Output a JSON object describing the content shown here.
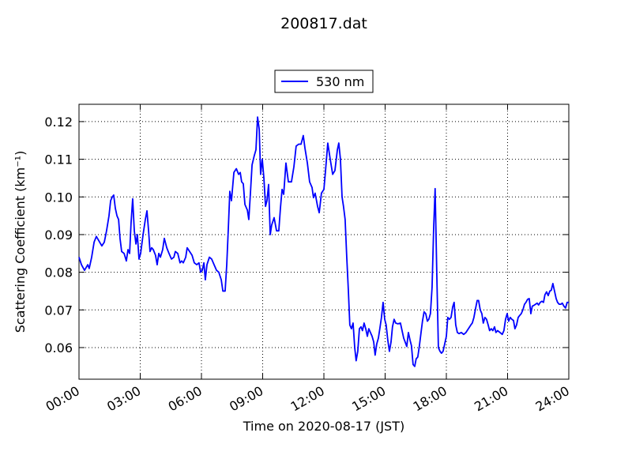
{
  "chart_data": {
    "type": "line",
    "title": "200817.dat",
    "xlabel": "Time on 2020-08-17 (JST)",
    "ylabel": "Scattering Coefficient (km⁻¹)",
    "xlim": [
      0,
      24
    ],
    "ylim": [
      0.0516,
      0.1246
    ],
    "xticks": [
      {
        "value": 0,
        "label": "00:00"
      },
      {
        "value": 3,
        "label": "03:00"
      },
      {
        "value": 6,
        "label": "06:00"
      },
      {
        "value": 9,
        "label": "09:00"
      },
      {
        "value": 12,
        "label": "12:00"
      },
      {
        "value": 15,
        "label": "15:00"
      },
      {
        "value": 18,
        "label": "18:00"
      },
      {
        "value": 21,
        "label": "21:00"
      },
      {
        "value": 24,
        "label": "24:00"
      }
    ],
    "yticks": [
      0.06,
      0.07,
      0.08,
      0.09,
      {
        "value": 0.1,
        "label": "0.10"
      },
      0.11,
      0.12
    ],
    "grid": true,
    "legend": "top",
    "x": [
      0,
      0.12,
      0.27,
      0.43,
      0.5,
      0.62,
      0.74,
      0.85,
      1.01,
      1.12,
      1.24,
      1.35,
      1.47,
      1.55,
      1.63,
      1.7,
      1.78,
      1.86,
      1.94,
      2.01,
      2.09,
      2.21,
      2.32,
      2.4,
      2.48,
      2.55,
      2.63,
      2.71,
      2.79,
      2.86,
      2.94,
      3.02,
      3.14,
      3.25,
      3.33,
      3.41,
      3.48,
      3.56,
      3.64,
      3.75,
      3.83,
      3.91,
      3.99,
      4.1,
      4.18,
      4.3,
      4.41,
      4.53,
      4.65,
      4.72,
      4.84,
      4.95,
      5.03,
      5.11,
      5.23,
      5.3,
      5.42,
      5.54,
      5.65,
      5.77,
      5.88,
      5.96,
      6.04,
      6.12,
      6.19,
      6.27,
      6.39,
      6.5,
      6.62,
      6.74,
      6.85,
      6.97,
      7.05,
      7.16,
      7.24,
      7.32,
      7.39,
      7.47,
      7.59,
      7.71,
      7.82,
      7.9,
      7.97,
      8.05,
      8.13,
      8.25,
      8.32,
      8.4,
      8.48,
      8.59,
      8.67,
      8.75,
      8.83,
      8.9,
      8.98,
      9.06,
      9.14,
      9.21,
      9.29,
      9.37,
      9.44,
      9.56,
      9.68,
      9.79,
      9.87,
      9.95,
      10.03,
      10.14,
      10.26,
      10.41,
      10.53,
      10.64,
      10.76,
      10.88,
      10.99,
      11.07,
      11.19,
      11.3,
      11.42,
      11.49,
      11.57,
      11.69,
      11.77,
      11.88,
      12.0,
      12.08,
      12.19,
      12.31,
      12.43,
      12.54,
      12.66,
      12.73,
      12.81,
      12.89,
      12.96,
      13.04,
      13.12,
      13.2,
      13.27,
      13.35,
      13.43,
      13.51,
      13.58,
      13.66,
      13.74,
      13.82,
      13.89,
      13.97,
      14.05,
      14.13,
      14.2,
      14.28,
      14.36,
      14.44,
      14.51,
      14.59,
      14.67,
      14.74,
      14.82,
      14.9,
      14.98,
      15.05,
      15.13,
      15.21,
      15.29,
      15.36,
      15.44,
      15.52,
      15.63,
      15.75,
      15.83,
      15.91,
      15.98,
      16.06,
      16.14,
      16.22,
      16.29,
      16.37,
      16.45,
      16.52,
      16.6,
      16.68,
      16.76,
      16.83,
      16.91,
      16.99,
      17.07,
      17.14,
      17.22,
      17.3,
      17.38,
      17.45,
      17.53,
      17.61,
      17.69,
      17.76,
      17.84,
      17.92,
      18.0,
      18.07,
      18.15,
      18.23,
      18.31,
      18.38,
      18.46,
      18.54,
      18.62,
      18.73,
      18.85,
      18.96,
      19.08,
      19.2,
      19.27,
      19.35,
      19.43,
      19.51,
      19.58,
      19.66,
      19.74,
      19.81,
      19.89,
      19.97,
      20.05,
      20.12,
      20.2,
      20.28,
      20.36,
      20.43,
      20.51,
      20.63,
      20.74,
      20.82,
      20.9,
      20.98,
      21.05,
      21.13,
      21.21,
      21.29,
      21.36,
      21.44,
      21.52,
      21.59,
      21.67,
      21.75,
      21.83,
      21.9,
      21.98,
      22.06,
      22.14,
      22.21,
      22.29,
      22.37,
      22.45,
      22.52,
      22.6,
      22.68,
      22.76,
      22.83,
      22.91,
      22.99,
      23.07,
      23.14,
      23.22,
      23.3,
      23.38,
      23.45,
      23.53,
      23.61,
      23.68,
      23.76,
      23.84,
      23.92,
      24.0
    ],
    "series": [
      {
        "name": "530 nm",
        "color": "#0000ff",
        "values": [
          0.084,
          0.082,
          0.0805,
          0.082,
          0.081,
          0.084,
          0.088,
          0.0895,
          0.088,
          0.087,
          0.088,
          0.091,
          0.095,
          0.099,
          0.1,
          0.1005,
          0.097,
          0.095,
          0.094,
          0.089,
          0.0855,
          0.085,
          0.083,
          0.086,
          0.085,
          0.093,
          0.0995,
          0.091,
          0.0875,
          0.09,
          0.0835,
          0.085,
          0.09,
          0.094,
          0.0963,
          0.091,
          0.0855,
          0.0865,
          0.086,
          0.0845,
          0.082,
          0.085,
          0.084,
          0.086,
          0.089,
          0.0865,
          0.085,
          0.0835,
          0.084,
          0.0855,
          0.085,
          0.0825,
          0.083,
          0.0825,
          0.084,
          0.0865,
          0.0855,
          0.0845,
          0.0825,
          0.082,
          0.0825,
          0.08,
          0.0805,
          0.0825,
          0.078,
          0.082,
          0.084,
          0.0835,
          0.082,
          0.0805,
          0.08,
          0.078,
          0.075,
          0.075,
          0.082,
          0.092,
          0.1015,
          0.099,
          0.1065,
          0.1075,
          0.106,
          0.1065,
          0.104,
          0.1035,
          0.098,
          0.0965,
          0.094,
          0.101,
          0.1085,
          0.111,
          0.1125,
          0.1212,
          0.118,
          0.106,
          0.11,
          0.105,
          0.0975,
          0.099,
          0.1033,
          0.09,
          0.0925,
          0.0945,
          0.091,
          0.091,
          0.097,
          0.102,
          0.1007,
          0.109,
          0.104,
          0.104,
          0.108,
          0.1135,
          0.114,
          0.114,
          0.1163,
          0.113,
          0.109,
          0.104,
          0.1025,
          0.0998,
          0.101,
          0.0975,
          0.0958,
          0.101,
          0.102,
          0.107,
          0.1143,
          0.11,
          0.106,
          0.107,
          0.1125,
          0.1143,
          0.11,
          0.1,
          0.0975,
          0.094,
          0.084,
          0.075,
          0.066,
          0.065,
          0.0665,
          0.06,
          0.0565,
          0.059,
          0.065,
          0.0655,
          0.0645,
          0.0665,
          0.065,
          0.063,
          0.065,
          0.064,
          0.063,
          0.0615,
          0.058,
          0.061,
          0.0625,
          0.065,
          0.068,
          0.072,
          0.0675,
          0.066,
          0.062,
          0.059,
          0.0615,
          0.0655,
          0.0675,
          0.0665,
          0.0663,
          0.0665,
          0.0645,
          0.0625,
          0.0615,
          0.0603,
          0.064,
          0.062,
          0.0605,
          0.0555,
          0.055,
          0.057,
          0.0575,
          0.0605,
          0.064,
          0.067,
          0.0695,
          0.069,
          0.067,
          0.0675,
          0.069,
          0.076,
          0.092,
          0.1022,
          0.08,
          0.06,
          0.059,
          0.0585,
          0.059,
          0.061,
          0.063,
          0.068,
          0.0675,
          0.068,
          0.0708,
          0.072,
          0.066,
          0.064,
          0.0637,
          0.064,
          0.0635,
          0.064,
          0.065,
          0.066,
          0.0665,
          0.068,
          0.0703,
          0.0725,
          0.0725,
          0.07,
          0.069,
          0.0665,
          0.068,
          0.0675,
          0.066,
          0.0645,
          0.065,
          0.0645,
          0.0655,
          0.064,
          0.0645,
          0.064,
          0.0635,
          0.0645,
          0.0675,
          0.069,
          0.067,
          0.068,
          0.0675,
          0.0672,
          0.065,
          0.066,
          0.068,
          0.0685,
          0.069,
          0.07,
          0.0715,
          0.072,
          0.0728,
          0.073,
          0.069,
          0.071,
          0.0712,
          0.0715,
          0.0718,
          0.0713,
          0.072,
          0.0723,
          0.072,
          0.074,
          0.0748,
          0.0738,
          0.075,
          0.0752,
          0.077,
          0.075,
          0.073,
          0.072,
          0.0715,
          0.0715,
          0.0718,
          0.071,
          0.0705,
          0.072,
          0.072
        ]
      }
    ]
  }
}
